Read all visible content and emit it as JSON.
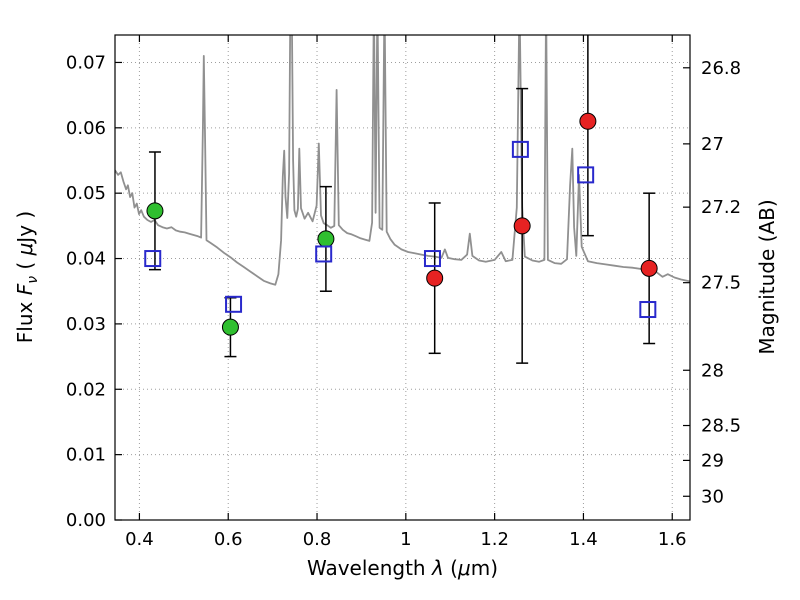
{
  "labels": {
    "x": {
      "p1": "Wavelength ",
      "sym": "λ",
      "p2": " (",
      "mu": "μ",
      "p3": "m)"
    },
    "y": {
      "p1": "Flux ",
      "sym": "F",
      "sub": "ν",
      "p2": " ( ",
      "mu": "μ",
      "p3": "Jy )"
    },
    "y2": "Magnitude (AB)"
  },
  "chart_data": {
    "type": "line+scatter",
    "title": "",
    "xlabel": "Wavelength λ (μm)",
    "ylabel": "Flux Fν ( μJy )",
    "y2label": "Magnitude (AB)",
    "xlim": [
      0.345,
      1.64
    ],
    "ylim": [
      0,
      0.0742
    ],
    "x_ticks": [
      0.4,
      0.6,
      0.8,
      1.0,
      1.2,
      1.4,
      1.6
    ],
    "x_tick_labels": [
      "0.4",
      "0.6",
      "0.8",
      "1",
      "1.2",
      "1.4",
      "1.6"
    ],
    "y_ticks": [
      0,
      0.01,
      0.02,
      0.03,
      0.04,
      0.05,
      0.06,
      0.07
    ],
    "y_tick_labels": [
      "0.00",
      "0.01",
      "0.02",
      "0.03",
      "0.04",
      "0.05",
      "0.06",
      "0.07"
    ],
    "y2_ticks_mag": [
      26.8,
      27,
      27.2,
      27.5,
      28,
      28.5,
      29,
      30
    ],
    "y2_tick_labels": [
      "26.8",
      "27",
      "27.2",
      "27.5",
      "28",
      "28.5",
      "29",
      "30"
    ],
    "ab_zeropoint": 23.9,
    "grid": {
      "on": true,
      "style": "dotted",
      "color": "#9e9e9e"
    },
    "frame_color": "#000000",
    "series": [
      {
        "name": "model-spectrum",
        "type": "line",
        "color": "#909090",
        "width": 1.8,
        "points": [
          [
            0.345,
            0.0535
          ],
          [
            0.352,
            0.0528
          ],
          [
            0.358,
            0.0532
          ],
          [
            0.364,
            0.0518
          ],
          [
            0.37,
            0.0506
          ],
          [
            0.374,
            0.0512
          ],
          [
            0.379,
            0.0494
          ],
          [
            0.384,
            0.05
          ],
          [
            0.389,
            0.0478
          ],
          [
            0.394,
            0.0484
          ],
          [
            0.399,
            0.0468
          ],
          [
            0.404,
            0.0474
          ],
          [
            0.41,
            0.0464
          ],
          [
            0.418,
            0.0459
          ],
          [
            0.426,
            0.0456
          ],
          [
            0.434,
            0.0459
          ],
          [
            0.442,
            0.0451
          ],
          [
            0.452,
            0.0448
          ],
          [
            0.462,
            0.0446
          ],
          [
            0.472,
            0.0448
          ],
          [
            0.482,
            0.0443
          ],
          [
            0.492,
            0.0441
          ],
          [
            0.502,
            0.044
          ],
          [
            0.512,
            0.0438
          ],
          [
            0.522,
            0.0436
          ],
          [
            0.532,
            0.0434
          ],
          [
            0.539,
            0.0432
          ],
          [
            0.543,
            0.06
          ],
          [
            0.545,
            0.071
          ],
          [
            0.548,
            0.058
          ],
          [
            0.551,
            0.0428
          ],
          [
            0.56,
            0.0424
          ],
          [
            0.575,
            0.0417
          ],
          [
            0.59,
            0.0409
          ],
          [
            0.605,
            0.0402
          ],
          [
            0.62,
            0.0394
          ],
          [
            0.635,
            0.0387
          ],
          [
            0.65,
            0.038
          ],
          [
            0.665,
            0.0373
          ],
          [
            0.68,
            0.0366
          ],
          [
            0.695,
            0.0362
          ],
          [
            0.706,
            0.036
          ],
          [
            0.713,
            0.0376
          ],
          [
            0.719,
            0.0428
          ],
          [
            0.723,
            0.0525
          ],
          [
            0.726,
            0.0565
          ],
          [
            0.729,
            0.0494
          ],
          [
            0.733,
            0.0462
          ],
          [
            0.737,
            0.053
          ],
          [
            0.74,
            0.08
          ],
          [
            0.743,
            0.08
          ],
          [
            0.746,
            0.055
          ],
          [
            0.749,
            0.0474
          ],
          [
            0.753,
            0.0464
          ],
          [
            0.757,
            0.0476
          ],
          [
            0.76,
            0.0568
          ],
          [
            0.764,
            0.0477
          ],
          [
            0.772,
            0.0461
          ],
          [
            0.78,
            0.047
          ],
          [
            0.79,
            0.0457
          ],
          [
            0.799,
            0.0481
          ],
          [
            0.804,
            0.0576
          ],
          [
            0.809,
            0.0466
          ],
          [
            0.815,
            0.0454
          ],
          [
            0.823,
            0.0451
          ],
          [
            0.831,
            0.0447
          ],
          [
            0.839,
            0.045
          ],
          [
            0.844,
            0.0658
          ],
          [
            0.849,
            0.0451
          ],
          [
            0.858,
            0.0444
          ],
          [
            0.868,
            0.0439
          ],
          [
            0.878,
            0.0437
          ],
          [
            0.888,
            0.0434
          ],
          [
            0.898,
            0.0431
          ],
          [
            0.908,
            0.0429
          ],
          [
            0.918,
            0.0427
          ],
          [
            0.924,
            0.0455
          ],
          [
            0.928,
            0.08
          ],
          [
            0.932,
            0.047
          ],
          [
            0.936,
            0.08
          ],
          [
            0.941,
            0.0447
          ],
          [
            0.947,
            0.0444
          ],
          [
            0.952,
            0.08
          ],
          [
            0.957,
            0.0441
          ],
          [
            0.965,
            0.043
          ],
          [
            0.975,
            0.0421
          ],
          [
            0.99,
            0.0414
          ],
          [
            1.005,
            0.041
          ],
          [
            1.02,
            0.0408
          ],
          [
            1.035,
            0.0406
          ],
          [
            1.05,
            0.0404
          ],
          [
            1.065,
            0.0403
          ],
          [
            1.08,
            0.0401
          ],
          [
            1.088,
            0.0414
          ],
          [
            1.095,
            0.0401
          ],
          [
            1.11,
            0.0399
          ],
          [
            1.125,
            0.0398
          ],
          [
            1.138,
            0.0406
          ],
          [
            1.144,
            0.0438
          ],
          [
            1.15,
            0.0404
          ],
          [
            1.165,
            0.0397
          ],
          [
            1.18,
            0.0395
          ],
          [
            1.2,
            0.0398
          ],
          [
            1.215,
            0.041
          ],
          [
            1.225,
            0.0396
          ],
          [
            1.24,
            0.0398
          ],
          [
            1.25,
            0.0478
          ],
          [
            1.256,
            0.08
          ],
          [
            1.262,
            0.0478
          ],
          [
            1.268,
            0.0403
          ],
          [
            1.285,
            0.0397
          ],
          [
            1.3,
            0.0395
          ],
          [
            1.312,
            0.0398
          ],
          [
            1.316,
            0.08
          ],
          [
            1.32,
            0.0398
          ],
          [
            1.335,
            0.0393
          ],
          [
            1.35,
            0.0392
          ],
          [
            1.363,
            0.0399
          ],
          [
            1.37,
            0.0512
          ],
          [
            1.375,
            0.0568
          ],
          [
            1.379,
            0.0448
          ],
          [
            1.384,
            0.0404
          ],
          [
            1.39,
            0.0528
          ],
          [
            1.396,
            0.0418
          ],
          [
            1.41,
            0.0396
          ],
          [
            1.43,
            0.0393
          ],
          [
            1.45,
            0.0391
          ],
          [
            1.47,
            0.0389
          ],
          [
            1.49,
            0.0387
          ],
          [
            1.51,
            0.0386
          ],
          [
            1.53,
            0.0384
          ],
          [
            1.55,
            0.0382
          ],
          [
            1.565,
            0.0379
          ],
          [
            1.578,
            0.0372
          ],
          [
            1.59,
            0.0376
          ],
          [
            1.605,
            0.0371
          ],
          [
            1.62,
            0.0368
          ],
          [
            1.64,
            0.0365
          ]
        ]
      },
      {
        "name": "green-photometry",
        "type": "scatter",
        "marker": "circle",
        "color": "#2fbf2f",
        "edge": "#000000",
        "size": 8,
        "points": [
          {
            "x": 0.435,
            "y": 0.0473,
            "yerr": 0.009
          },
          {
            "x": 0.605,
            "y": 0.0295,
            "yerr": 0.0045
          },
          {
            "x": 0.82,
            "y": 0.043,
            "yerr": 0.008
          }
        ]
      },
      {
        "name": "red-photometry",
        "type": "scatter",
        "marker": "circle",
        "color": "#e62222",
        "edge": "#000000",
        "size": 8,
        "points": [
          {
            "x": 1.065,
            "y": 0.037,
            "yerr": 0.0115
          },
          {
            "x": 1.262,
            "y": 0.045,
            "yerr": 0.021
          },
          {
            "x": 1.41,
            "y": 0.061,
            "yerr": 0.0175
          },
          {
            "x": 1.548,
            "y": 0.0385,
            "yerr": 0.0115
          }
        ]
      },
      {
        "name": "blue-photometry",
        "type": "scatter",
        "marker": "square-open",
        "color": "#2929cc",
        "size": 15,
        "points": [
          {
            "x": 0.43,
            "y": 0.04
          },
          {
            "x": 0.612,
            "y": 0.033
          },
          {
            "x": 0.815,
            "y": 0.0407
          },
          {
            "x": 1.06,
            "y": 0.04
          },
          {
            "x": 1.258,
            "y": 0.0567
          },
          {
            "x": 1.405,
            "y": 0.0528
          },
          {
            "x": 1.545,
            "y": 0.0322
          }
        ]
      }
    ]
  }
}
